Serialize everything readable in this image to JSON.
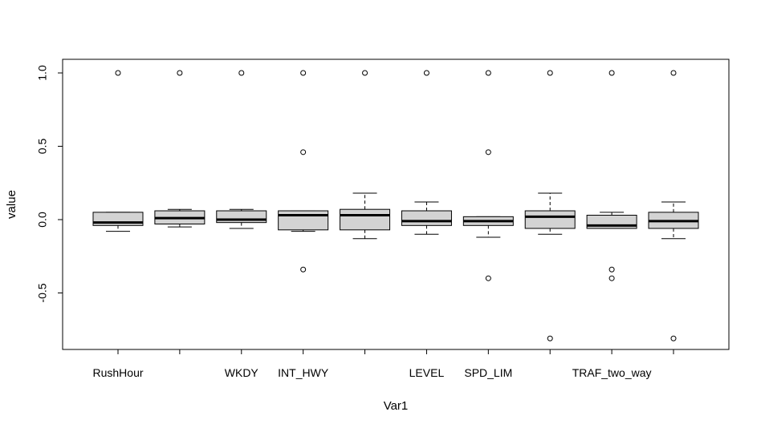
{
  "chart_data": {
    "type": "boxplot",
    "xlabel": "Var1",
    "ylabel": "value",
    "ylim": [
      -0.88,
      1.04
    ],
    "yticks": [
      1.0,
      0.5,
      0.0,
      -0.5
    ],
    "ytick_labels": [
      "1.0",
      "0.5",
      "0.0",
      "-0.5"
    ],
    "box_fill": "#d3d3d3",
    "categories": [
      "RushHour",
      "",
      "WKDY",
      "INT_HWY",
      "",
      "LEVEL",
      "SPD_LIM",
      "",
      "TRAF_two_way",
      ""
    ],
    "boxes": [
      {
        "whisker_low": -0.08,
        "q1": -0.04,
        "median": -0.02,
        "q3": 0.05,
        "whisker_high": 0.05,
        "outliers": [
          1.0
        ]
      },
      {
        "whisker_low": -0.05,
        "q1": -0.03,
        "median": 0.01,
        "q3": 0.06,
        "whisker_high": 0.07,
        "outliers": [
          1.0
        ]
      },
      {
        "whisker_low": -0.06,
        "q1": -0.02,
        "median": 0.0,
        "q3": 0.06,
        "whisker_high": 0.07,
        "outliers": [
          1.0
        ]
      },
      {
        "whisker_low": -0.08,
        "q1": -0.07,
        "median": 0.03,
        "q3": 0.06,
        "whisker_high": 0.06,
        "outliers": [
          1.0,
          0.46,
          -0.34
        ]
      },
      {
        "whisker_low": -0.13,
        "q1": -0.07,
        "median": 0.03,
        "q3": 0.07,
        "whisker_high": 0.18,
        "outliers": [
          1.0
        ]
      },
      {
        "whisker_low": -0.1,
        "q1": -0.04,
        "median": -0.01,
        "q3": 0.06,
        "whisker_high": 0.12,
        "outliers": [
          1.0
        ]
      },
      {
        "whisker_low": -0.12,
        "q1": -0.04,
        "median": -0.01,
        "q3": 0.02,
        "whisker_high": 0.02,
        "outliers": [
          1.0,
          0.46,
          -0.4
        ]
      },
      {
        "whisker_low": -0.1,
        "q1": -0.06,
        "median": 0.02,
        "q3": 0.06,
        "whisker_high": 0.18,
        "outliers": [
          1.0,
          -0.81
        ]
      },
      {
        "whisker_low": -0.06,
        "q1": -0.06,
        "median": -0.04,
        "q3": 0.03,
        "whisker_high": 0.05,
        "outliers": [
          1.0,
          -0.34,
          -0.4
        ]
      },
      {
        "whisker_low": -0.13,
        "q1": -0.06,
        "median": -0.01,
        "q3": 0.05,
        "whisker_high": 0.12,
        "outliers": [
          1.0,
          -0.81
        ]
      }
    ]
  }
}
